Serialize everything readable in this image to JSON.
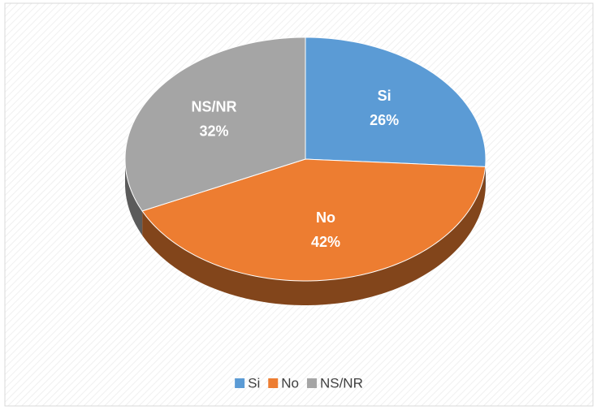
{
  "chart_data": {
    "type": "pie",
    "categories": [
      "Si",
      "No",
      "NS/NR"
    ],
    "values": [
      26,
      42,
      32
    ],
    "value_labels": [
      "26%",
      "42%",
      "32%"
    ],
    "colors": [
      "#5b9bd5",
      "#ed7d31",
      "#a5a5a5"
    ],
    "legend": "bottom"
  }
}
